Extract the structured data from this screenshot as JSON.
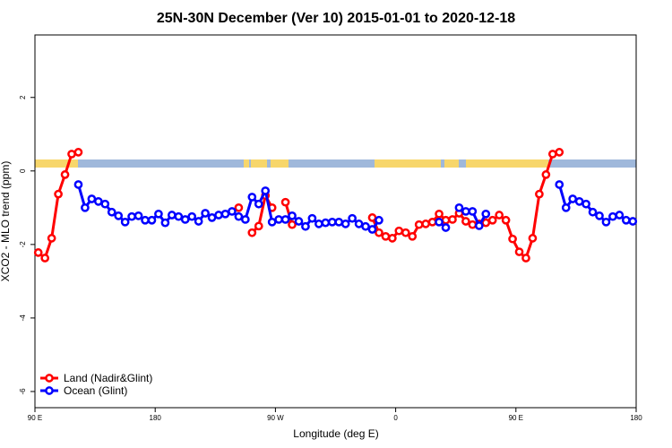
{
  "chart_data": {
    "type": "line",
    "title": "25N-30N December (Ver 10)   2015-01-01 to 2020-12-18",
    "x_label": "Longitude (deg E)",
    "y_label": "XCO2 - MLO trend (ppm)",
    "xlim": [
      90,
      540
    ],
    "ylim": [
      -6.44,
      3.7
    ],
    "xticks": [
      {
        "value": 90,
        "label": "90 E"
      },
      180,
      {
        "value": 270,
        "label": "90 W"
      },
      {
        "value": 360,
        "label": "0"
      },
      {
        "value": 450,
        "label": "90 E"
      },
      {
        "value": 540,
        "label": "180"
      }
    ],
    "yticks": [
      -6,
      -4,
      -2,
      0,
      2
    ],
    "legend": "bottom-left",
    "x": [
      92.5,
      97.5,
      102.5,
      107.5,
      112.5,
      117.5,
      122.5,
      127.5,
      132.5,
      137.5,
      142.5,
      147.5,
      152.5,
      157.5,
      162.5,
      167.5,
      172.5,
      177.5,
      182.5,
      187.5,
      192.5,
      197.5,
      202.5,
      207.5,
      212.5,
      217.5,
      222.5,
      227.5,
      232.5,
      237.5,
      242.5,
      247.5,
      252.5,
      257.5,
      262.5,
      267.5,
      272.5,
      277.5,
      282.5,
      287.5,
      292.5,
      297.5,
      302.5,
      307.5,
      312.5,
      317.5,
      322.5,
      327.5,
      332.5,
      337.5,
      342.5,
      347.5,
      352.5,
      357.5,
      362.5,
      367.5,
      372.5,
      377.5,
      382.5,
      387.5,
      392.5,
      397.5,
      402.5,
      407.5,
      412.5,
      417.5,
      422.5,
      427.5,
      432.5,
      437.5,
      442.5,
      447.5,
      452.5,
      457.5,
      462.5,
      467.5,
      472.5,
      477.5,
      482.5,
      487.5,
      492.5,
      497.5,
      502.5,
      507.5,
      512.5,
      517.5,
      522.5,
      527.5,
      532.5,
      537.5
    ],
    "series": [
      {
        "name": "Land (Nadir&Glint)",
        "color": "#ff0000",
        "values": [
          -2.22,
          -2.37,
          -1.83,
          -0.63,
          -0.1,
          0.46,
          0.51,
          null,
          null,
          null,
          null,
          null,
          null,
          null,
          null,
          null,
          null,
          null,
          null,
          null,
          null,
          null,
          null,
          null,
          null,
          null,
          null,
          null,
          null,
          null,
          -1.0,
          null,
          -1.68,
          -1.5,
          -0.67,
          -1.0,
          null,
          -0.85,
          -1.46,
          null,
          null,
          null,
          null,
          null,
          null,
          null,
          null,
          null,
          null,
          null,
          -1.27,
          -1.68,
          -1.78,
          -1.83,
          -1.63,
          -1.68,
          -1.78,
          -1.46,
          -1.44,
          -1.39,
          -1.17,
          -1.34,
          -1.32,
          -1.15,
          -1.37,
          -1.46,
          -1.44,
          -1.41,
          -1.34,
          -1.2,
          -1.34,
          -1.85,
          -2.2,
          -2.37,
          -1.83,
          -0.63,
          -0.1,
          0.46,
          0.51,
          null,
          null,
          null,
          null,
          null,
          null,
          null,
          null,
          null,
          null,
          null
        ]
      },
      {
        "name": "Ocean (Glint)",
        "color": "#0000ff",
        "values": [
          null,
          null,
          null,
          null,
          null,
          null,
          -0.37,
          -1.0,
          -0.76,
          -0.83,
          -0.9,
          -1.12,
          -1.22,
          -1.39,
          -1.24,
          -1.22,
          -1.34,
          -1.34,
          -1.17,
          -1.41,
          -1.2,
          -1.24,
          -1.32,
          -1.24,
          -1.37,
          -1.15,
          -1.27,
          -1.2,
          -1.17,
          -1.1,
          -1.24,
          -1.32,
          -0.71,
          -0.9,
          -0.54,
          -1.39,
          -1.32,
          -1.32,
          -1.22,
          -1.37,
          -1.51,
          -1.29,
          -1.44,
          -1.41,
          -1.39,
          -1.39,
          -1.44,
          -1.29,
          -1.44,
          -1.51,
          -1.59,
          -1.34,
          null,
          null,
          null,
          null,
          null,
          null,
          null,
          null,
          -1.39,
          -1.54,
          null,
          -1.0,
          -1.1,
          -1.1,
          -1.49,
          -1.17,
          null,
          null,
          null,
          null,
          null,
          null,
          null,
          null,
          null,
          null,
          -0.37,
          -1.0,
          -0.76,
          -0.83,
          -0.9,
          -1.12,
          -1.22,
          -1.39,
          -1.24,
          -1.2,
          -1.34,
          -1.37
        ]
      }
    ]
  }
}
